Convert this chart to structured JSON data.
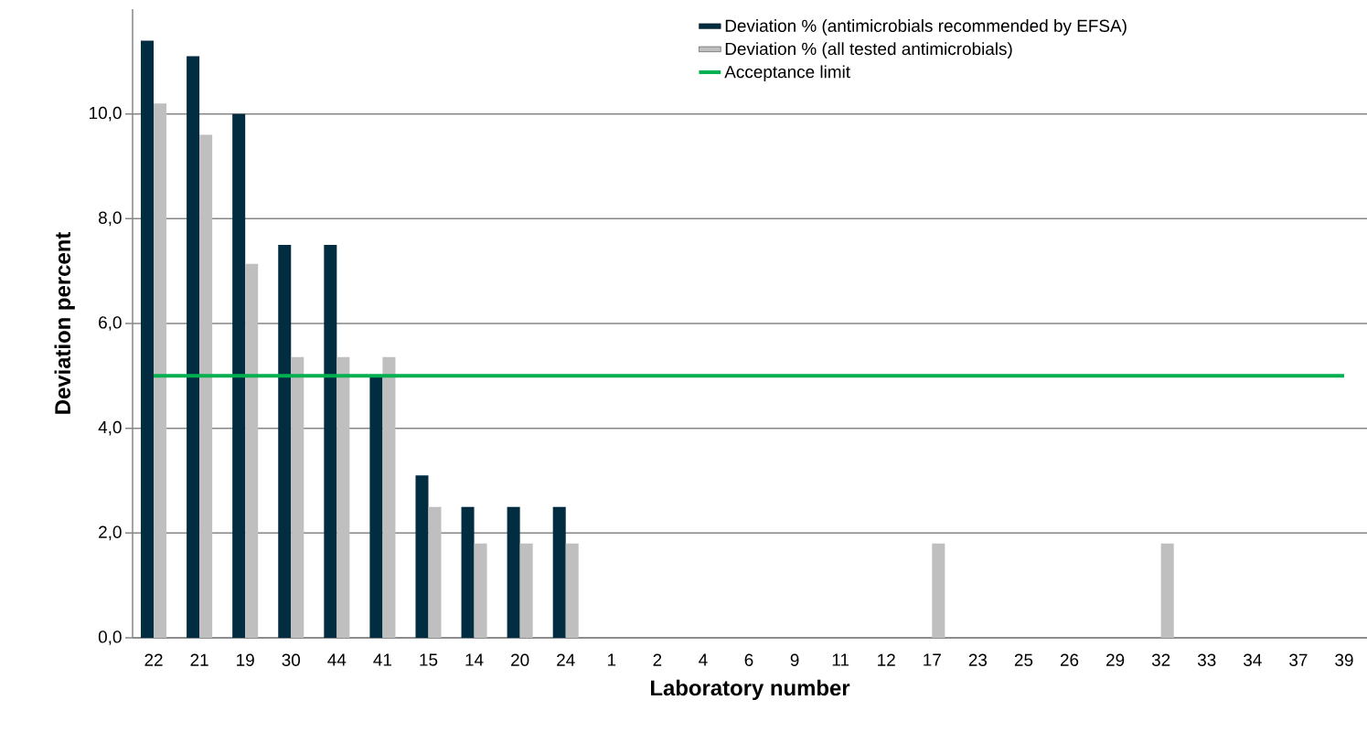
{
  "chart_data": {
    "type": "bar",
    "xlabel": "Laboratory number",
    "ylabel": "Deviation percent",
    "categories": [
      "22",
      "21",
      "19",
      "30",
      "44",
      "41",
      "15",
      "14",
      "20",
      "24",
      "1",
      "2",
      "4",
      "6",
      "9",
      "11",
      "12",
      "17",
      "23",
      "25",
      "26",
      "29",
      "32",
      "33",
      "34",
      "37",
      "39"
    ],
    "series": [
      {
        "name": "Deviation % (antimicrobials recommended by EFSA)",
        "color": "#022d41",
        "values": [
          11.4,
          11.1,
          10.0,
          7.5,
          7.5,
          5.0,
          3.1,
          2.5,
          2.5,
          2.5,
          0,
          0,
          0,
          0,
          0,
          0,
          0,
          0,
          0,
          0,
          0,
          0,
          0,
          0,
          0,
          0,
          0
        ]
      },
      {
        "name": "Deviation % (all tested antimicrobials)",
        "color": "#bfbfbf",
        "values": [
          10.2,
          9.6,
          7.14,
          5.36,
          5.36,
          5.36,
          2.5,
          1.8,
          1.8,
          1.8,
          0,
          0,
          0,
          0,
          0,
          0,
          0,
          1.8,
          0,
          0,
          0,
          0,
          1.8,
          0,
          0,
          0,
          0
        ]
      }
    ],
    "ref_lines": [
      {
        "axis": "y",
        "value": 5,
        "label": "Acceptance limit",
        "color": "#00b050"
      }
    ],
    "ylim": [
      0,
      12
    ],
    "yticks": [
      {
        "value": 0,
        "label": "0,0"
      },
      {
        "value": 2,
        "label": "2,0"
      },
      {
        "value": 4,
        "label": "4,0"
      },
      {
        "value": 6,
        "label": "6,0"
      },
      {
        "value": 8,
        "label": "8,0"
      },
      {
        "value": 10,
        "label": "10,0"
      }
    ],
    "grid": "y",
    "legend": "top right"
  }
}
